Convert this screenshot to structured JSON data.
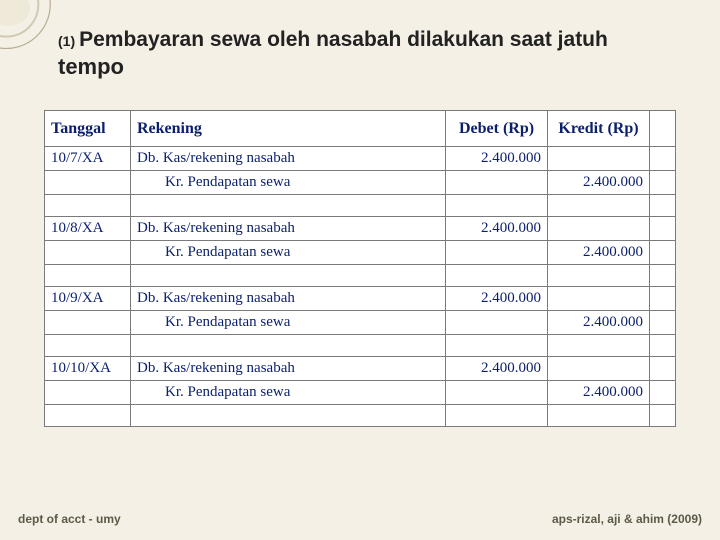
{
  "title_prefix": "(1)",
  "title_line1": "Pembayaran sewa oleh nasabah dilakukan saat jatuh",
  "title_line2": "tempo",
  "headers": {
    "tanggal": "Tanggal",
    "rekening": "Rekening",
    "debet": "Debet (Rp)",
    "kredit": "Kredit (Rp)"
  },
  "rows": [
    {
      "tgl": "10/7/XA",
      "rek": "Db. Kas/rekening nasabah",
      "deb": "2.400.000",
      "krd": ""
    },
    {
      "tgl": "",
      "rek_indent": "Kr. Pendapatan sewa",
      "deb": "",
      "krd": "2.400.000"
    },
    {
      "tgl": "",
      "rek": "",
      "deb": "",
      "krd": ""
    },
    {
      "tgl": "10/8/XA",
      "rek": "Db. Kas/rekening nasabah",
      "deb": "2.400.000",
      "krd": ""
    },
    {
      "tgl": "",
      "rek_indent": "Kr. Pendapatan sewa",
      "deb": "",
      "krd": "2.400.000"
    },
    {
      "tgl": "",
      "rek": "",
      "deb": "",
      "krd": ""
    },
    {
      "tgl": "10/9/XA",
      "rek": "Db. Kas/rekening nasabah",
      "deb": "2.400.000",
      "krd": ""
    },
    {
      "tgl": "",
      "rek_indent": "Kr. Pendapatan sewa",
      "deb": "",
      "krd": "2.400.000"
    },
    {
      "tgl": "",
      "rek": "",
      "deb": "",
      "krd": ""
    },
    {
      "tgl": "10/10/XA",
      "rek": "Db. Kas/rekening nasabah",
      "deb": "2.400.000",
      "krd": ""
    },
    {
      "tgl": "",
      "rek_indent": "Kr. Pendapatan sewa",
      "deb": "",
      "krd": "2.400.000"
    },
    {
      "tgl": "",
      "rek": "",
      "deb": "",
      "krd": ""
    }
  ],
  "footer_left": "dept of acct - umy",
  "footer_right": "aps-rizal, aji & ahim (2009)",
  "colors": {
    "bg": "#f5f0e6",
    "table_bg": "#ffffff",
    "border": "#7a7a7a",
    "header_text": "#0b1f6b",
    "cell_text": "#0b1f6b",
    "title_text": "#222222",
    "footer_text": "#5a5a46",
    "decor_stroke": "#b8ad94"
  }
}
